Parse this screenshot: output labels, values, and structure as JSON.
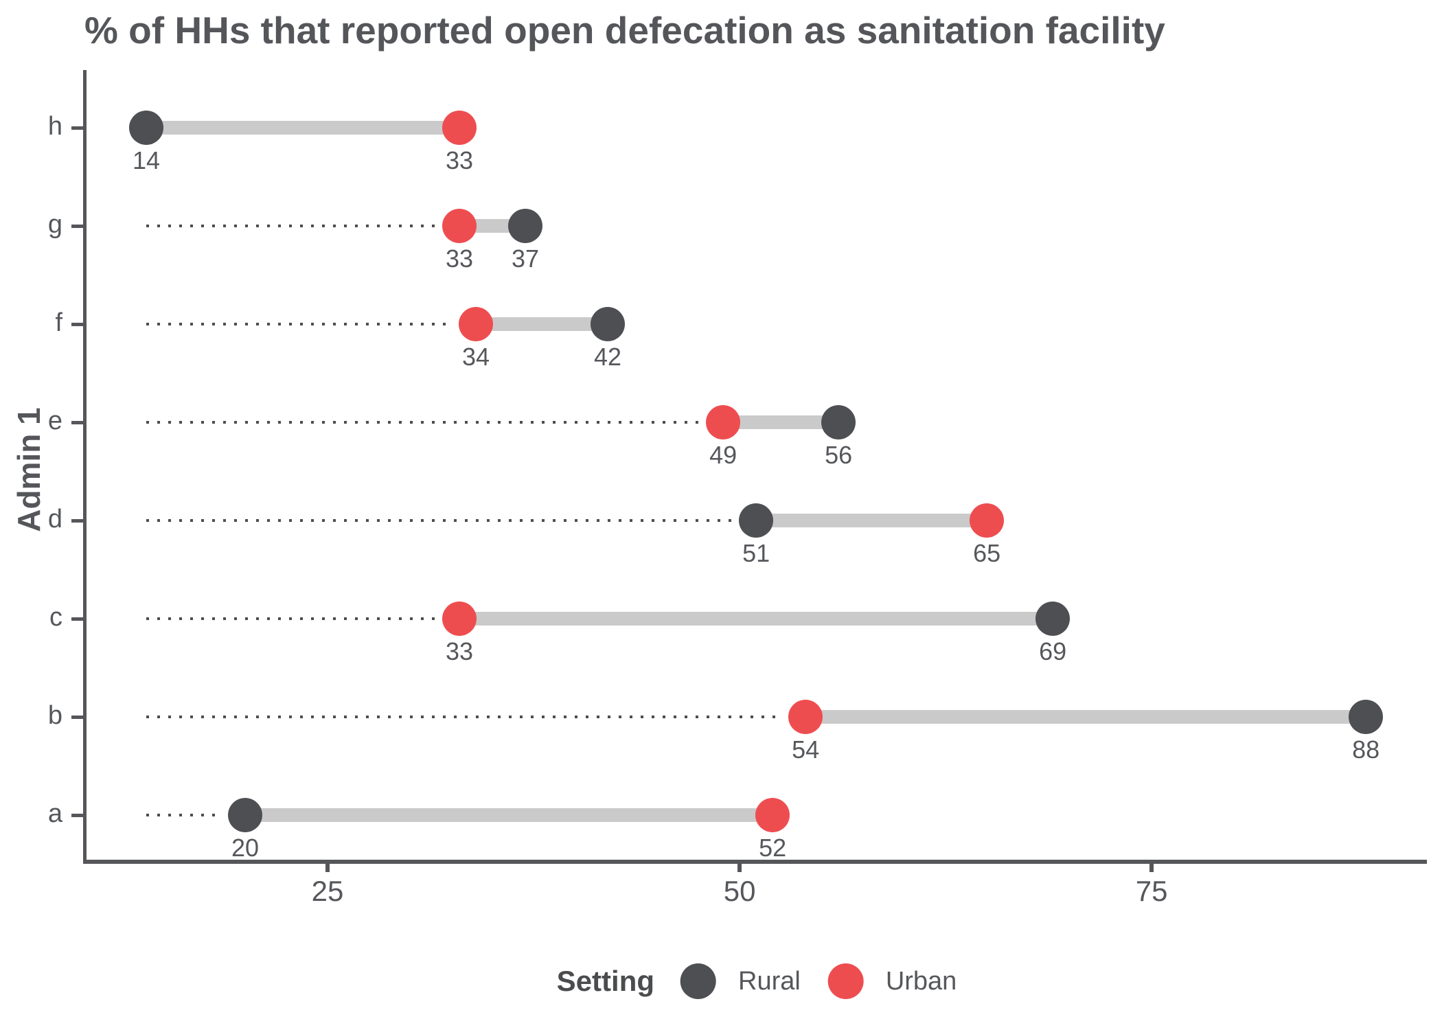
{
  "title": "% of HHs that reported open defecation as sanitation facility",
  "y_axis": {
    "title": "Admin 1",
    "categories": [
      "h",
      "g",
      "f",
      "e",
      "d",
      "c",
      "b",
      "a"
    ]
  },
  "x_axis": {
    "tick_labels": [
      "25",
      "50",
      "75"
    ]
  },
  "legend": {
    "title": "Setting",
    "position": "bottom",
    "items": [
      {
        "label": "Rural",
        "color": "#4E4F52"
      },
      {
        "label": "Urban",
        "color": "#EE4D50"
      }
    ]
  },
  "colors": {
    "rural": "#4E4F52",
    "urban": "#EE4D50",
    "connector_bar": "#CACACB",
    "dotted_line": "#4C4D4F",
    "axis": "#55565A",
    "label_text": "#55575B",
    "title_text": "#54565A",
    "background": "#FFFFFF"
  },
  "chart_data": {
    "type": "dumbbell",
    "orientation": "horizontal",
    "title": "% of HHs that reported open defecation as sanitation facility",
    "xlabel": "",
    "ylabel": "Admin 1",
    "categories": [
      "h",
      "g",
      "f",
      "e",
      "d",
      "c",
      "b",
      "a"
    ],
    "series": [
      {
        "name": "Rural",
        "color": "#4E4F52",
        "values": [
          14,
          37,
          42,
          56,
          51,
          69,
          88,
          20
        ]
      },
      {
        "name": "Urban",
        "color": "#EE4D50",
        "values": [
          33,
          33,
          34,
          49,
          65,
          33,
          54,
          52
        ]
      }
    ],
    "value_labels_shown": true,
    "x_ticks": [
      25,
      50,
      75
    ],
    "x_domain": [
      10.375,
      91.7
    ],
    "dotted_baseline_value": 14,
    "grid": false,
    "legend_position": "bottom"
  }
}
